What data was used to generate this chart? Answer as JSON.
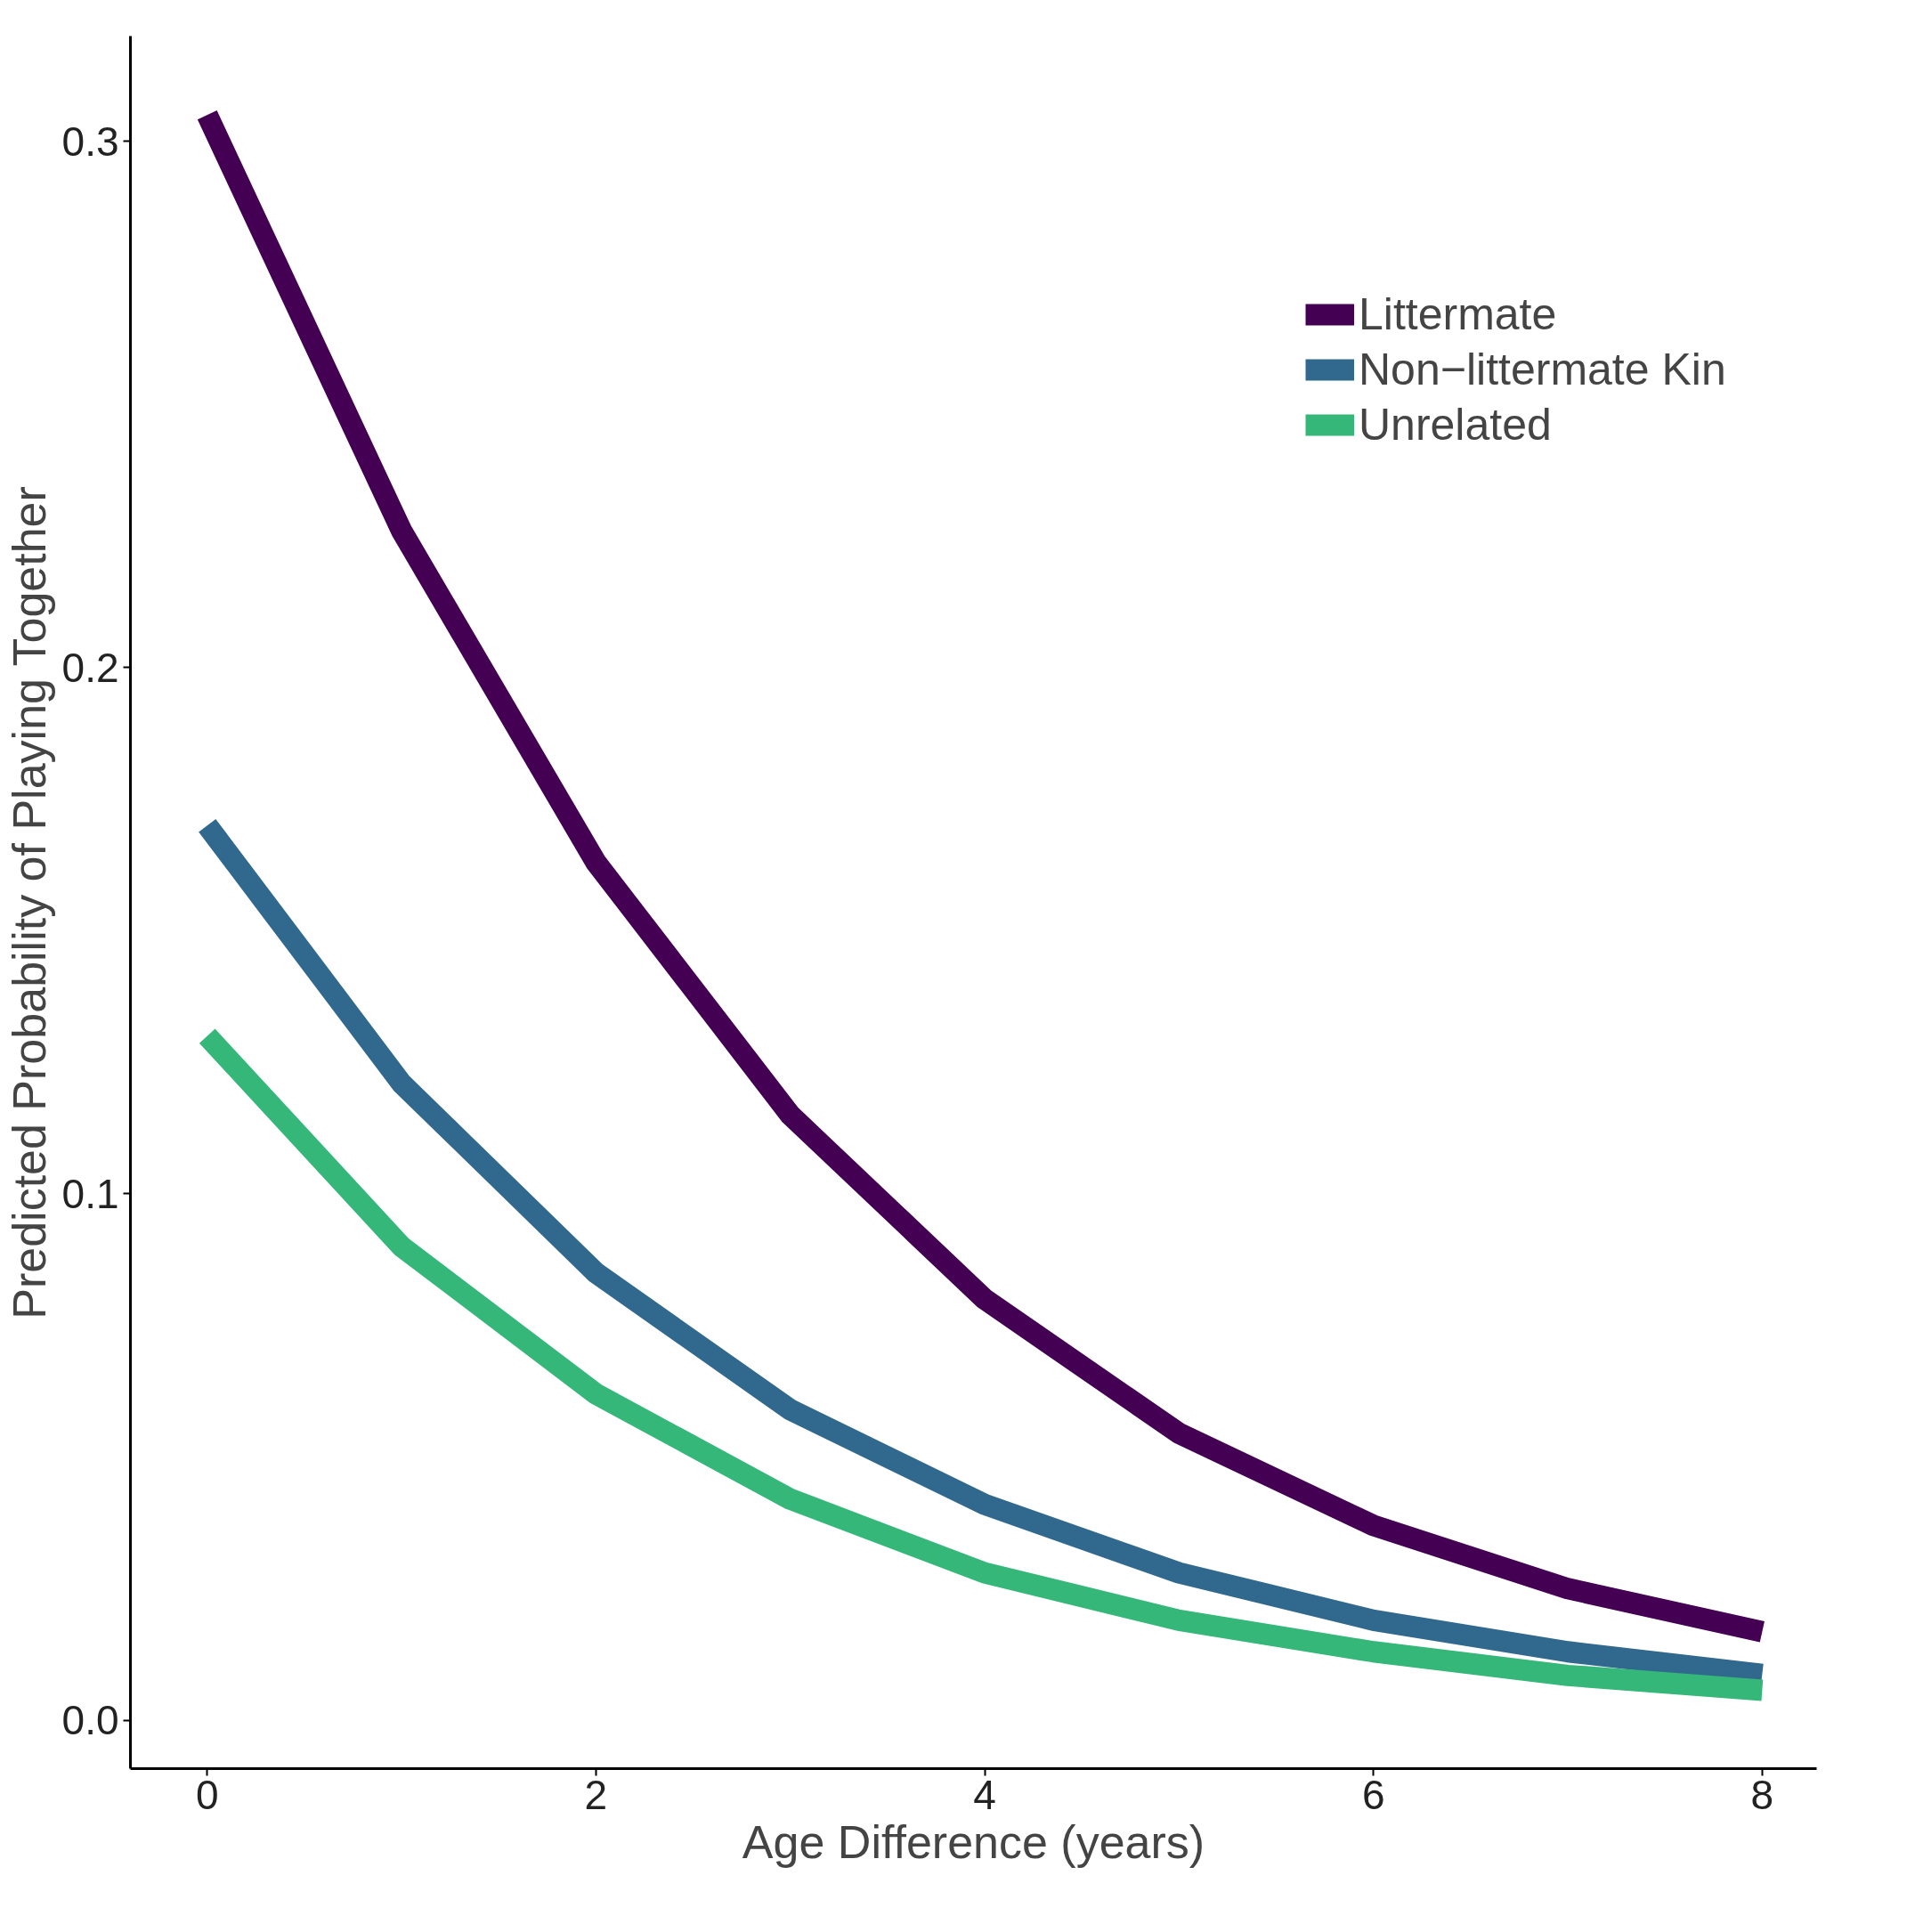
{
  "chart_data": {
    "type": "line",
    "xlabel": "Age Difference (years)",
    "ylabel": "Predicted Probability of Playing Together",
    "x": [
      0,
      1,
      2,
      3,
      4,
      5,
      6,
      7,
      8
    ],
    "series": [
      {
        "name": "Littermate",
        "color": "#440154",
        "values": [
          0.305,
          0.226,
          0.163,
          0.115,
          0.08,
          0.0545,
          0.037,
          0.025,
          0.0168
        ]
      },
      {
        "name": "Non−littermate Kin",
        "color": "#31688e",
        "values": [
          0.17,
          0.121,
          0.085,
          0.059,
          0.041,
          0.028,
          0.019,
          0.013,
          0.0087
        ]
      },
      {
        "name": "Unrelated",
        "color": "#35b779",
        "values": [
          0.13,
          0.09,
          0.062,
          0.042,
          0.028,
          0.019,
          0.013,
          0.0085,
          0.0057
        ]
      }
    ],
    "xlim": [
      -0.395,
      8.28
    ],
    "ylim": [
      -0.0092,
      0.32
    ],
    "xticks": [
      0,
      2,
      4,
      6,
      8
    ],
    "yticks": [
      {
        "value": 0,
        "label": "0.0"
      },
      0.1,
      0.2,
      0.3
    ],
    "grid": false,
    "legend": "top right",
    "line_style": "solid",
    "marker": "none"
  }
}
